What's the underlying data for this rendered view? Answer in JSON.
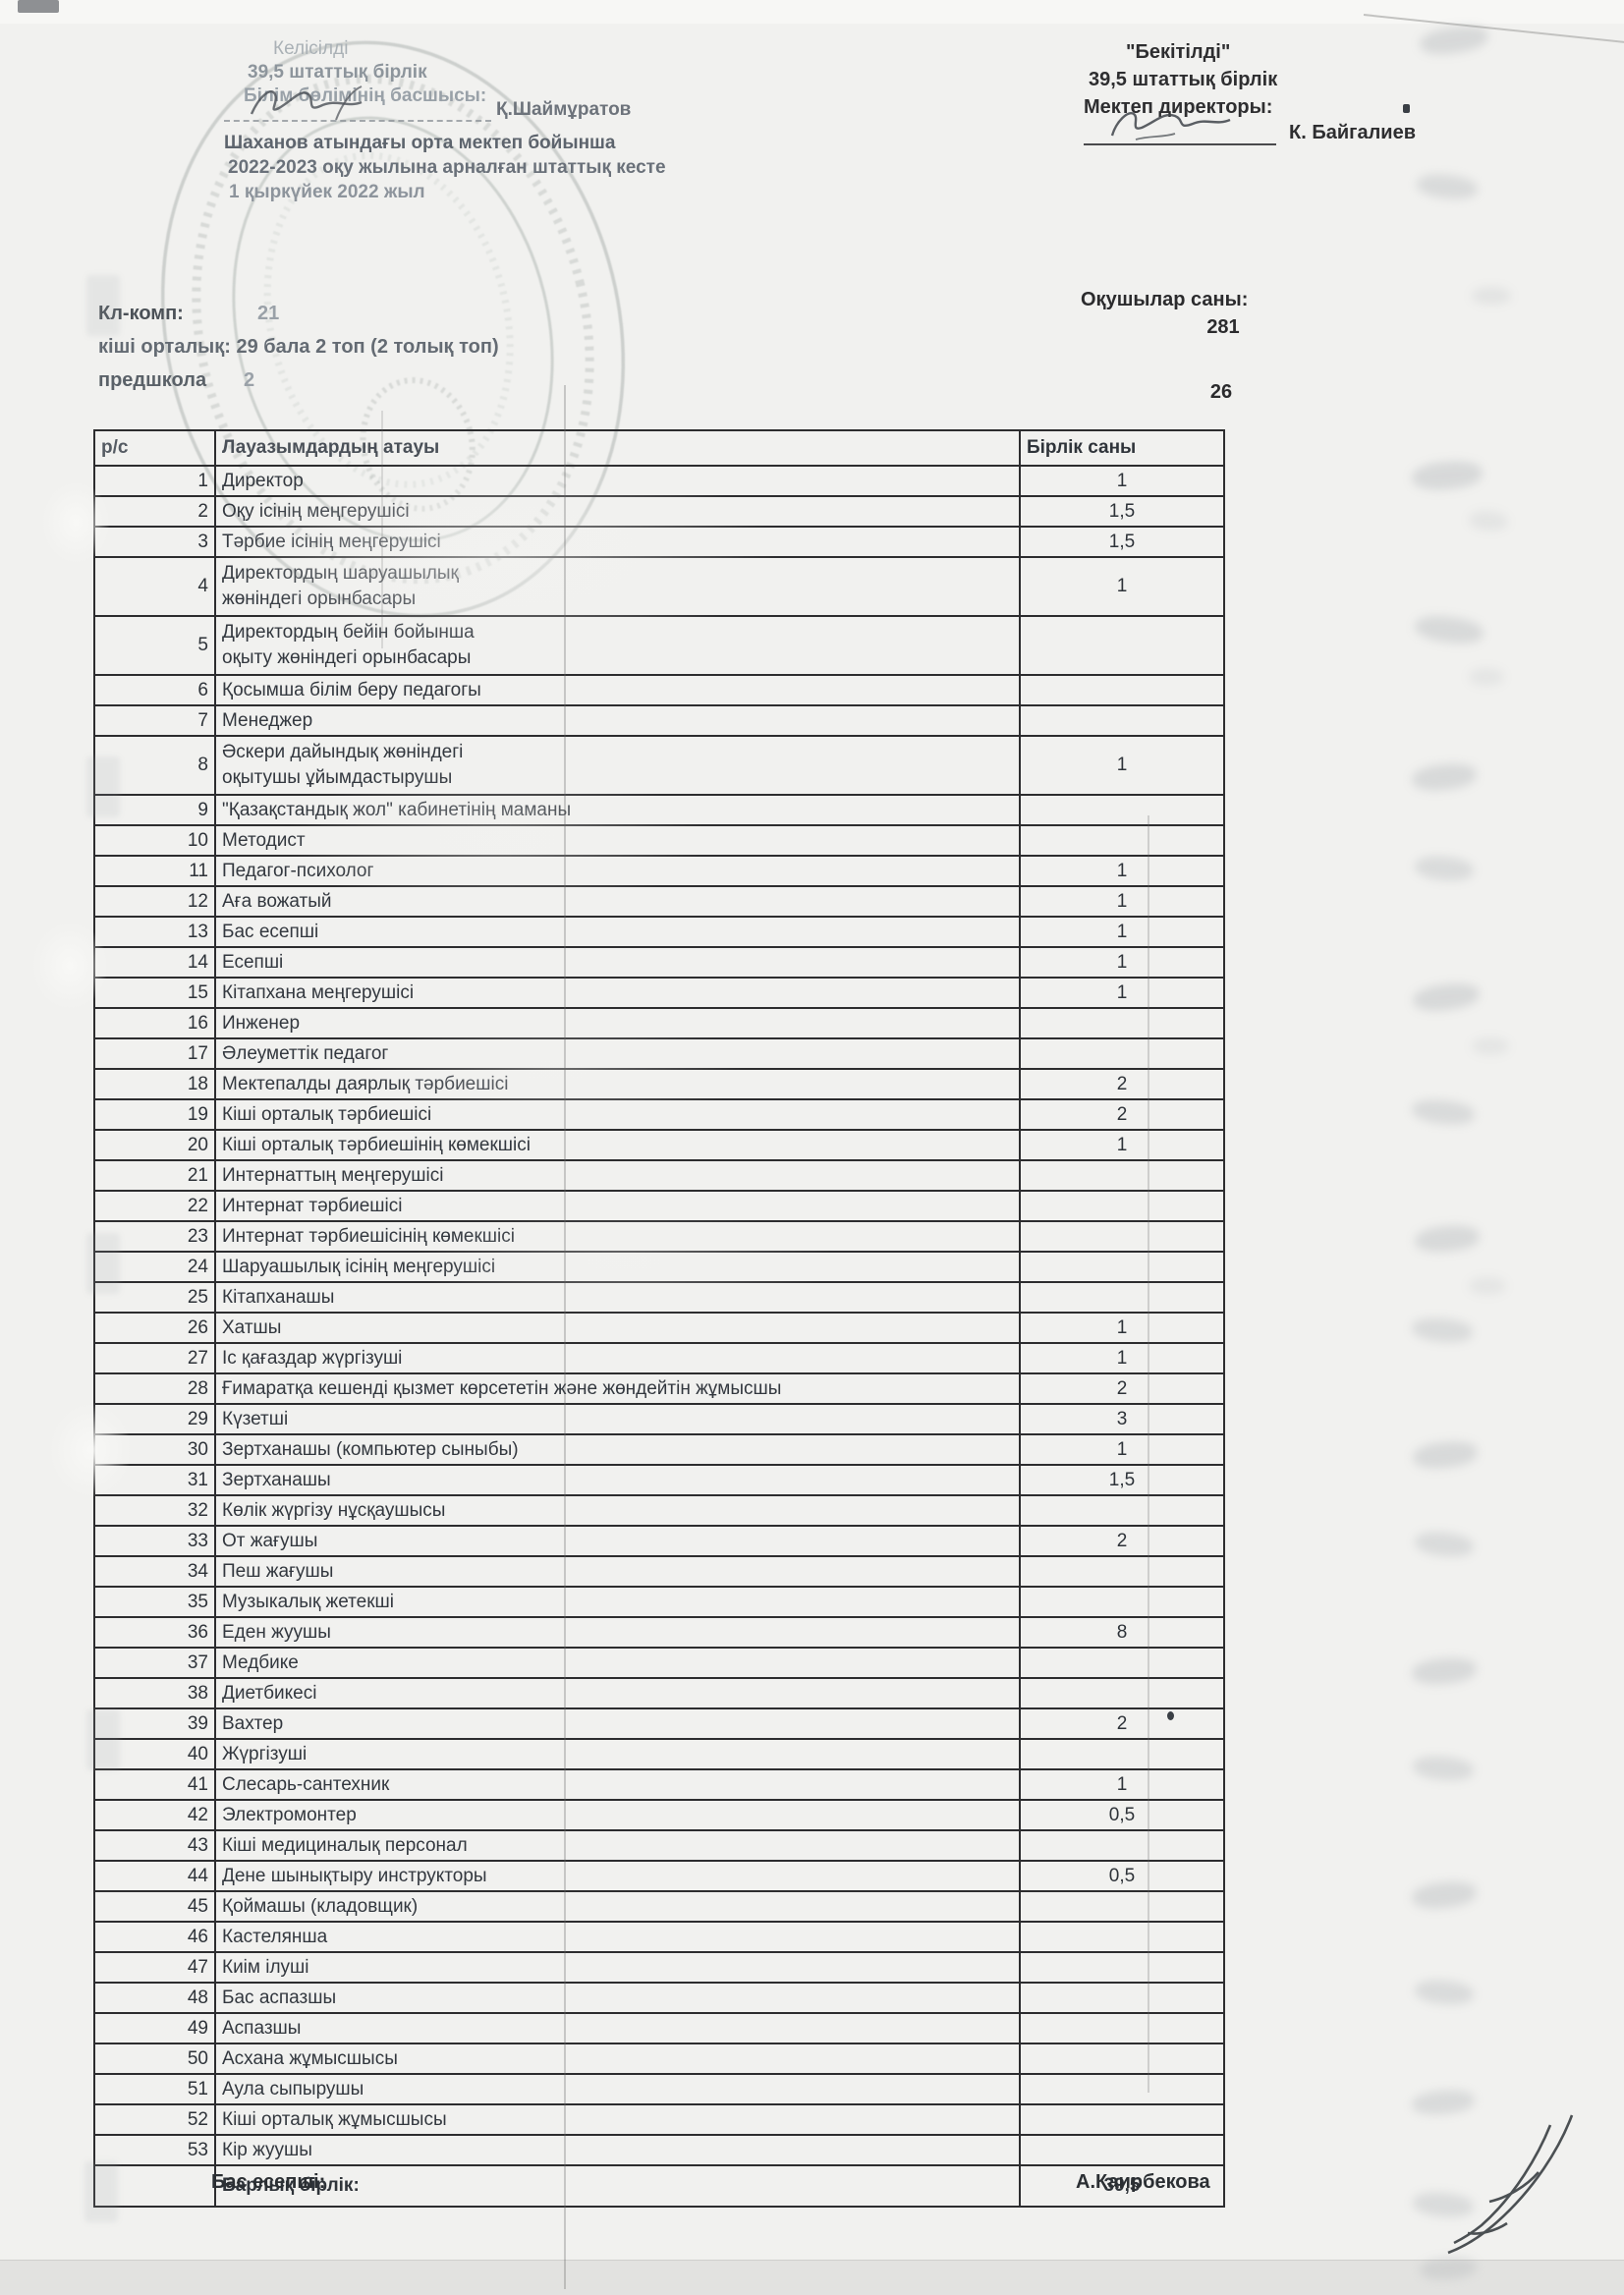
{
  "colors": {
    "paper": "#f1f1ef",
    "ink": "#2e3338",
    "faded_ink": "#8d959c"
  },
  "header_left": {
    "agreed": "Келісілді",
    "units": "39,5 штаттық бірлік",
    "role": "Білім бөлімінің басшысы:",
    "signatory": "Қ.Шаймұратов",
    "title_line1": "Шаханов атындағы орта мектеп бойынша",
    "title_line2": "2022-2023 оқу жылына арналған штаттық кесте",
    "title_line3": "1 қыркүйек 2022 жыл"
  },
  "header_right": {
    "approved": "\"Бекітілді\"",
    "units": "39,5 штаттық бірлік",
    "role": "Мектеп директоры:",
    "signatory": "К. Байгалиев"
  },
  "students": {
    "label": "Оқушылар саны:",
    "count": "281",
    "preschool_count": "26"
  },
  "class_info": {
    "line1_label": "Кл-комп:",
    "line1_value": "21",
    "line2": "кіші орталық: 29 бала  2 топ (2 толық топ)",
    "line3_label": "предшкола",
    "line3_value": "2"
  },
  "table": {
    "col_num": "р/с",
    "col_name": "Лауазымдардың атауы",
    "col_units": "Бірлік саны",
    "total_label": "Барлық бірлік:",
    "total_value": "39,5",
    "rows": [
      {
        "n": "1",
        "name": "Директор",
        "units": "1"
      },
      {
        "n": "2",
        "name": "Оқу ісінің меңгерушісі",
        "units": "1,5"
      },
      {
        "n": "3",
        "name": "Тәрбие ісінің меңгерушісі",
        "units": "1,5"
      },
      {
        "n": "4",
        "name": "Директордың шаруашылық\nжөніндегі орынбасары",
        "units": "1"
      },
      {
        "n": "5",
        "name": "Директордың бейін бойынша\nоқыту жөніндегі орынбасары",
        "units": ""
      },
      {
        "n": "6",
        "name": "Қосымша білім беру педагогы",
        "units": ""
      },
      {
        "n": "7",
        "name": "Менеджер",
        "units": ""
      },
      {
        "n": "8",
        "name": "Әскери дайындық жөніндегі\nоқытушы ұйымдастырушы",
        "units": "1"
      },
      {
        "n": "9",
        "name": "\"Қазақстандық жол\" кабинетінің маманы",
        "units": ""
      },
      {
        "n": "10",
        "name": "Методист",
        "units": ""
      },
      {
        "n": "11",
        "name": "Педагог-психолог",
        "units": "1"
      },
      {
        "n": "12",
        "name": "Аға вожатый",
        "units": "1"
      },
      {
        "n": "13",
        "name": "Бас есепші",
        "units": "1"
      },
      {
        "n": "14",
        "name": "Есепші",
        "units": "1"
      },
      {
        "n": "15",
        "name": "Кітапхана меңгерушісі",
        "units": "1"
      },
      {
        "n": "16",
        "name": "Инженер",
        "units": ""
      },
      {
        "n": "17",
        "name": "Әлеуметтік педагог",
        "units": ""
      },
      {
        "n": "18",
        "name": "Мектепалды даярлық тәрбиешісі",
        "units": "2"
      },
      {
        "n": "19",
        "name": "Кіші орталық тәрбиешісі",
        "units": "2"
      },
      {
        "n": "20",
        "name": "Кіші орталық тәрбиешінің көмекшісі",
        "units": "1"
      },
      {
        "n": "21",
        "name": "Интернаттың меңгерушісі",
        "units": ""
      },
      {
        "n": "22",
        "name": "Интернат тәрбиешісі",
        "units": ""
      },
      {
        "n": "23",
        "name": "Интернат тәрбиешісінің көмекшісі",
        "units": ""
      },
      {
        "n": "24",
        "name": "Шаруашылық ісінің меңгерушісі",
        "units": ""
      },
      {
        "n": "25",
        "name": "Кітапханашы",
        "units": ""
      },
      {
        "n": "26",
        "name": "Хатшы",
        "units": "1"
      },
      {
        "n": "27",
        "name": "Іс қағаздар жүргізуші",
        "units": "1"
      },
      {
        "n": "28",
        "name": "Ғимаратқа кешенді қызмет көрсететін және жөндейтін жұмысшы",
        "units": "2"
      },
      {
        "n": "29",
        "name": "Күзетші",
        "units": "3"
      },
      {
        "n": "30",
        "name": "Зертханашы (компьютер сыныбы)",
        "units": "1"
      },
      {
        "n": "31",
        "name": "Зертханашы",
        "units": "1,5"
      },
      {
        "n": "32",
        "name": "Көлік жүргізу нұсқаушысы",
        "units": ""
      },
      {
        "n": "33",
        "name": "От жағушы",
        "units": "2"
      },
      {
        "n": "34",
        "name": "Пеш жағушы",
        "units": ""
      },
      {
        "n": "35",
        "name": "Музыкалық жетекші",
        "units": ""
      },
      {
        "n": "36",
        "name": "Еден жуушы",
        "units": "8"
      },
      {
        "n": "37",
        "name": "Медбике",
        "units": ""
      },
      {
        "n": "38",
        "name": "Диетбикесі",
        "units": ""
      },
      {
        "n": "39",
        "name": "Вахтер",
        "units": "2"
      },
      {
        "n": "40",
        "name": "Жүргізуші",
        "units": ""
      },
      {
        "n": "41",
        "name": "Слесарь-сантехник",
        "units": "1"
      },
      {
        "n": "42",
        "name": "Электромонтер",
        "units": "0,5"
      },
      {
        "n": "43",
        "name": "Кіші медициналық персонал",
        "units": ""
      },
      {
        "n": "44",
        "name": "Дене шынықтыру инструкторы",
        "units": "0,5"
      },
      {
        "n": "45",
        "name": "Қоймашы (кладовщик)",
        "units": ""
      },
      {
        "n": "46",
        "name": "Кастелянша",
        "units": ""
      },
      {
        "n": "47",
        "name": "Киім ілуші",
        "units": ""
      },
      {
        "n": "48",
        "name": "Бас аспазшы",
        "units": ""
      },
      {
        "n": "49",
        "name": "Аспазшы",
        "units": ""
      },
      {
        "n": "50",
        "name": "Асхана жұмысшысы",
        "units": ""
      },
      {
        "n": "51",
        "name": "Аула сыпырушы",
        "units": ""
      },
      {
        "n": "52",
        "name": "Кіші орталық жұмысшысы",
        "units": ""
      },
      {
        "n": "53",
        "name": "Кір жуушы",
        "units": ""
      }
    ]
  },
  "footer": {
    "left": "Бас есепші:",
    "right": "А.Каирбекова"
  }
}
